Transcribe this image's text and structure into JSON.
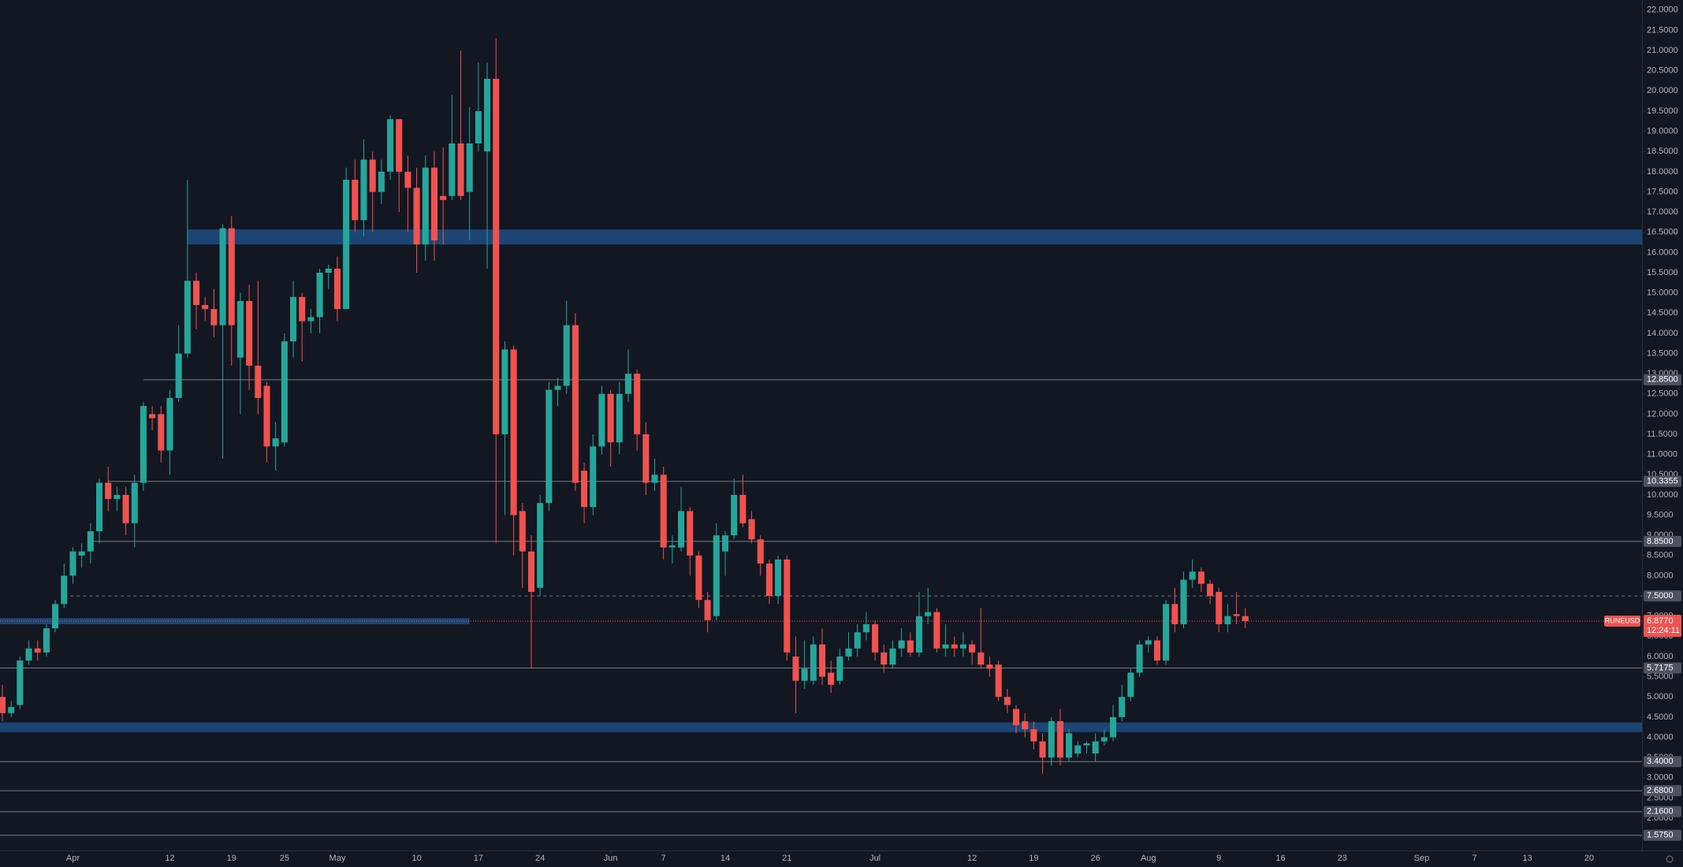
{
  "chart_data": {
    "type": "candlestick",
    "symbol": "RUNEUSD",
    "x": [
      "Mar 24",
      "Mar 25",
      "Mar 26",
      "Mar 27",
      "Mar 28",
      "Mar 29",
      "Mar 30",
      "Mar 31",
      "Apr 1",
      "Apr 2",
      "Apr 3",
      "Apr 4",
      "Apr 5",
      "Apr 6",
      "Apr 7",
      "Apr 8",
      "Apr 9",
      "Apr 10",
      "Apr 11",
      "Apr 12",
      "Apr 13",
      "Apr 14",
      "Apr 15",
      "Apr 16",
      "Apr 17",
      "Apr 18",
      "Apr 19",
      "Apr 20",
      "Apr 21",
      "Apr 22",
      "Apr 23",
      "Apr 24",
      "Apr 25",
      "Apr 26",
      "Apr 27",
      "Apr 28",
      "Apr 29",
      "Apr 30",
      "May 1",
      "May 2",
      "May 3",
      "May 4",
      "May 5",
      "May 6",
      "May 7",
      "May 8",
      "May 9",
      "May 10",
      "May 11",
      "May 12",
      "May 13",
      "May 14",
      "May 15",
      "May 16",
      "May 17",
      "May 18",
      "May 19",
      "May 20",
      "May 21",
      "May 22",
      "May 23",
      "May 24",
      "May 25",
      "May 26",
      "May 27",
      "May 28",
      "May 29",
      "May 30",
      "May 31",
      "Jun 1",
      "Jun 2",
      "Jun 3",
      "Jun 4",
      "Jun 5",
      "Jun 6",
      "Jun 7",
      "Jun 8",
      "Jun 9",
      "Jun 10",
      "Jun 11",
      "Jun 12",
      "Jun 13",
      "Jun 14",
      "Jun 15",
      "Jun 16",
      "Jun 17",
      "Jun 18",
      "Jun 19",
      "Jun 20",
      "Jun 21",
      "Jun 22",
      "Jun 23",
      "Jun 24",
      "Jun 25",
      "Jun 26",
      "Jun 27",
      "Jun 28",
      "Jun 29",
      "Jun 30",
      "Jul 1",
      "Jul 2",
      "Jul 3",
      "Jul 4",
      "Jul 5",
      "Jul 6",
      "Jul 7",
      "Jul 8",
      "Jul 9",
      "Jul 10",
      "Jul 11",
      "Jul 12",
      "Jul 13",
      "Jul 14",
      "Jul 15",
      "Jul 16",
      "Jul 17",
      "Jul 18",
      "Jul 19",
      "Jul 20",
      "Jul 21",
      "Jul 22",
      "Jul 23",
      "Jul 24",
      "Jul 25",
      "Jul 26",
      "Jul 27",
      "Jul 28",
      "Jul 29",
      "Jul 30",
      "Jul 31",
      "Aug 1",
      "Aug 2",
      "Aug 3",
      "Aug 4",
      "Aug 5",
      "Aug 6",
      "Aug 7",
      "Aug 8",
      "Aug 9",
      "Aug 10",
      "Aug 11",
      "Aug 12"
    ],
    "open": [
      5.0,
      4.6,
      4.8,
      5.9,
      6.2,
      6.1,
      6.7,
      7.3,
      8.0,
      8.5,
      8.6,
      9.1,
      10.3,
      9.9,
      10.0,
      9.3,
      10.3,
      12.0,
      12.0,
      11.1,
      12.4,
      13.5,
      15.3,
      14.7,
      14.6,
      14.2,
      16.6,
      13.4,
      14.8,
      13.2,
      12.7,
      11.2,
      11.3,
      13.8,
      14.9,
      14.3,
      14.4,
      15.5,
      15.6,
      14.6,
      17.8,
      16.8,
      18.3,
      17.5,
      18.0,
      19.3,
      18.0,
      17.6,
      16.2,
      18.1,
      17.4,
      17.4,
      18.7,
      17.5,
      18.7,
      18.5,
      20.3,
      11.5,
      13.6,
      9.6,
      8.6,
      7.7,
      9.8,
      12.6,
      12.7,
      14.2,
      10.6,
      9.7,
      11.2,
      12.5,
      11.3,
      12.5,
      13.0,
      11.5,
      10.3,
      10.5,
      8.7,
      8.7,
      9.6,
      8.5,
      7.4,
      7.0,
      8.6,
      9.0,
      10.0,
      9.4,
      8.9,
      8.3,
      7.5,
      8.4,
      6.0,
      5.4,
      5.4,
      6.3,
      5.6,
      5.4,
      6.0,
      6.2,
      6.6,
      6.8,
      6.1,
      5.8,
      6.2,
      6.4,
      6.1,
      7.0,
      7.1,
      6.2,
      6.3,
      6.2,
      6.3,
      6.1,
      5.8,
      5.8,
      5.0,
      4.7,
      4.4,
      4.2,
      3.9,
      3.5,
      4.4,
      3.5,
      3.6,
      3.8,
      3.6,
      3.9,
      4.0,
      4.5,
      5.0,
      5.6,
      6.3,
      6.4,
      5.9,
      7.3,
      6.8,
      7.9,
      8.1,
      7.8,
      7.6,
      6.8,
      7.05,
      7.0
    ],
    "high": [
      5.3,
      4.9,
      6.0,
      6.4,
      6.4,
      6.8,
      7.4,
      8.3,
      8.7,
      8.8,
      9.3,
      10.4,
      10.7,
      10.2,
      10.2,
      10.5,
      12.3,
      12.2,
      12.2,
      12.6,
      14.2,
      17.8,
      15.5,
      14.9,
      15.1,
      16.7,
      16.9,
      15.0,
      15.2,
      15.3,
      12.8,
      11.8,
      14.0,
      15.3,
      15.0,
      14.6,
      15.6,
      15.7,
      15.9,
      18.1,
      18.3,
      18.8,
      18.5,
      18.3,
      19.4,
      19.3,
      18.4,
      18.1,
      18.4,
      18.5,
      18.6,
      19.9,
      21.0,
      19.6,
      20.7,
      20.7,
      21.3,
      13.8,
      13.7,
      9.8,
      9.0,
      10.0,
      12.8,
      12.9,
      14.8,
      14.5,
      10.8,
      11.5,
      12.7,
      12.6,
      12.8,
      13.6,
      13.1,
      11.8,
      10.9,
      10.7,
      9.0,
      10.2,
      9.7,
      8.6,
      7.6,
      9.3,
      9.1,
      10.4,
      10.5,
      9.6,
      9.0,
      8.4,
      8.5,
      8.5,
      6.5,
      6.4,
      6.5,
      6.7,
      5.9,
      6.2,
      6.6,
      6.8,
      7.1,
      6.9,
      6.3,
      6.4,
      6.7,
      6.6,
      7.6,
      7.7,
      7.2,
      6.8,
      6.5,
      6.6,
      6.4,
      7.2,
      6.0,
      5.9,
      5.2,
      4.8,
      4.6,
      4.4,
      4.1,
      4.5,
      4.7,
      4.2,
      3.9,
      3.9,
      4.1,
      4.2,
      4.8,
      5.3,
      5.7,
      6.4,
      6.5,
      6.5,
      7.4,
      7.7,
      8.1,
      8.4,
      8.2,
      7.9,
      7.7,
      7.3,
      7.6,
      7.2
    ],
    "low": [
      4.4,
      4.5,
      4.7,
      5.8,
      5.9,
      6.0,
      6.6,
      7.2,
      7.8,
      8.2,
      8.3,
      8.8,
      9.6,
      9.6,
      9.0,
      8.7,
      10.1,
      11.6,
      10.8,
      10.5,
      12.3,
      13.4,
      14.1,
      14.3,
      13.9,
      10.9,
      13.2,
      12.0,
      12.6,
      12.0,
      10.8,
      10.6,
      11.2,
      13.4,
      13.3,
      14.0,
      14.0,
      15.1,
      14.3,
      14.6,
      16.5,
      16.4,
      16.5,
      17.2,
      17.8,
      17.0,
      16.5,
      15.5,
      15.8,
      15.8,
      16.2,
      17.3,
      17.3,
      16.3,
      18.5,
      15.6,
      8.8,
      9.5,
      8.5,
      7.7,
      5.7,
      7.5,
      9.6,
      12.2,
      12.5,
      10.1,
      9.3,
      9.5,
      11.0,
      10.7,
      11.0,
      12.3,
      11.1,
      10.0,
      10.1,
      8.4,
      8.3,
      8.6,
      8.0,
      7.2,
      6.6,
      6.9,
      8.0,
      8.9,
      9.2,
      8.8,
      8.0,
      7.3,
      7.3,
      5.9,
      4.6,
      5.2,
      5.3,
      5.3,
      5.1,
      5.3,
      5.9,
      6.0,
      6.4,
      5.9,
      5.6,
      5.7,
      6.0,
      6.0,
      6.0,
      6.8,
      6.1,
      6.0,
      6.0,
      6.0,
      5.8,
      5.7,
      5.5,
      4.9,
      4.6,
      4.1,
      4.0,
      3.7,
      3.1,
      3.3,
      3.3,
      3.4,
      3.5,
      3.6,
      3.4,
      3.8,
      3.9,
      4.4,
      4.9,
      5.5,
      6.1,
      5.8,
      5.8,
      6.6,
      6.7,
      7.7,
      7.6,
      7.3,
      6.6,
      6.6,
      6.8,
      6.7
    ],
    "close": [
      4.6,
      4.75,
      5.9,
      6.2,
      6.1,
      6.7,
      7.3,
      8.0,
      8.6,
      8.6,
      9.1,
      10.3,
      9.9,
      10.0,
      9.3,
      10.3,
      12.2,
      11.9,
      11.1,
      12.4,
      13.5,
      15.3,
      14.7,
      14.6,
      14.2,
      16.6,
      14.2,
      14.8,
      13.2,
      12.4,
      11.2,
      11.4,
      13.8,
      14.9,
      14.3,
      14.4,
      15.5,
      15.6,
      14.6,
      17.8,
      16.8,
      18.3,
      17.5,
      18.0,
      19.3,
      18.0,
      17.6,
      16.2,
      18.1,
      16.3,
      17.3,
      18.7,
      17.4,
      18.7,
      19.5,
      20.3,
      11.5,
      13.6,
      9.5,
      8.6,
      7.6,
      9.8,
      12.6,
      12.7,
      14.2,
      10.3,
      9.7,
      11.2,
      12.5,
      11.3,
      12.5,
      13.0,
      11.5,
      10.3,
      10.5,
      8.7,
      8.75,
      9.6,
      8.5,
      7.4,
      6.9,
      9.0,
      9.0,
      10.0,
      9.3,
      8.9,
      8.3,
      7.5,
      8.4,
      6.1,
      5.4,
      5.7,
      6.3,
      5.5,
      5.3,
      6.0,
      6.2,
      6.6,
      6.8,
      6.1,
      5.8,
      6.2,
      6.4,
      6.1,
      7.0,
      7.1,
      6.2,
      6.3,
      6.2,
      6.3,
      6.1,
      5.8,
      5.7,
      5.0,
      4.8,
      4.3,
      4.2,
      3.9,
      3.5,
      4.4,
      3.5,
      4.1,
      3.8,
      3.85,
      3.9,
      4.0,
      4.5,
      5.0,
      5.6,
      6.3,
      6.4,
      5.9,
      7.3,
      6.8,
      7.9,
      8.1,
      7.8,
      7.5,
      6.8,
      7.0,
      7.0,
      6.877
    ],
    "up_color": "#26a69a",
    "down_color": "#ef5350",
    "xlim": [
      "Mar 24",
      "Sep 26"
    ],
    "xticks": [
      {
        "value": "Apr 1",
        "label": "Apr"
      },
      {
        "value": "Apr 12",
        "label": "12"
      },
      {
        "value": "Apr 19",
        "label": "19"
      },
      {
        "value": "Apr 25",
        "label": "25"
      },
      {
        "value": "May 1",
        "label": "May"
      },
      {
        "value": "May 10",
        "label": "10"
      },
      {
        "value": "May 17",
        "label": "17"
      },
      {
        "value": "May 24",
        "label": "24"
      },
      {
        "value": "Jun 1",
        "label": "Jun"
      },
      {
        "value": "Jun 7",
        "label": "7"
      },
      {
        "value": "Jun 14",
        "label": "14"
      },
      {
        "value": "Jun 21",
        "label": "21"
      },
      {
        "value": "Jul 1",
        "label": "Jul"
      },
      {
        "value": "Jul 12",
        "label": "12"
      },
      {
        "value": "Jul 19",
        "label": "19"
      },
      {
        "value": "Jul 26",
        "label": "26"
      },
      {
        "value": "Aug 1",
        "label": "Aug"
      },
      {
        "value": "Aug 9",
        "label": "9"
      },
      {
        "value": "Aug 16",
        "label": "16"
      },
      {
        "value": "Aug 23",
        "label": "23"
      },
      {
        "value": "Sep 1",
        "label": "Sep"
      },
      {
        "value": "Sep 7",
        "label": "7"
      },
      {
        "value": "Sep 13",
        "label": "13"
      },
      {
        "value": "Sep 20",
        "label": "20"
      }
    ],
    "ylim": [
      1.2,
      22.25
    ],
    "yticks": [
      {
        "value": 22,
        "label": "22.0000"
      },
      {
        "value": 21.5,
        "label": "21.5000"
      },
      {
        "value": 21,
        "label": "21.0000"
      },
      {
        "value": 20.5,
        "label": "20.5000"
      },
      {
        "value": 20,
        "label": "20.0000"
      },
      {
        "value": 19.5,
        "label": "19.5000"
      },
      {
        "value": 19,
        "label": "19.0000"
      },
      {
        "value": 18.5,
        "label": "18.5000"
      },
      {
        "value": 18,
        "label": "18.0000"
      },
      {
        "value": 17.5,
        "label": "17.5000"
      },
      {
        "value": 17,
        "label": "17.0000"
      },
      {
        "value": 16.5,
        "label": "16.5000"
      },
      {
        "value": 16,
        "label": "16.0000"
      },
      {
        "value": 15.5,
        "label": "15.5000"
      },
      {
        "value": 15,
        "label": "15.0000"
      },
      {
        "value": 14.5,
        "label": "14.5000"
      },
      {
        "value": 14,
        "label": "14.0000"
      },
      {
        "value": 13.5,
        "label": "13.5000"
      },
      {
        "value": 13,
        "label": "13.0000"
      },
      {
        "value": 12.5,
        "label": "12.5000"
      },
      {
        "value": 12,
        "label": "12.0000"
      },
      {
        "value": 11.5,
        "label": "11.5000"
      },
      {
        "value": 11,
        "label": "11.0000"
      },
      {
        "value": 10.5,
        "label": "10.5000"
      },
      {
        "value": 10,
        "label": "10.0000"
      },
      {
        "value": 9.5,
        "label": "9.5000"
      },
      {
        "value": 9,
        "label": "9.0000"
      },
      {
        "value": 8.5,
        "label": "8.5000"
      },
      {
        "value": 8,
        "label": "8.0000"
      },
      {
        "value": 7.5,
        "label": "7.5000"
      },
      {
        "value": 7,
        "label": "7.0000"
      },
      {
        "value": 6.5,
        "label": "6.5000"
      },
      {
        "value": 6,
        "label": "6.0000"
      },
      {
        "value": 5.5,
        "label": "5.5000"
      },
      {
        "value": 5,
        "label": "5.0000"
      },
      {
        "value": 4.5,
        "label": "4.5000"
      },
      {
        "value": 4,
        "label": "4.0000"
      },
      {
        "value": 3.5,
        "label": "3.5000"
      },
      {
        "value": 3,
        "label": "3.0000"
      },
      {
        "value": 2.5,
        "label": "2.5000"
      },
      {
        "value": 2,
        "label": "2.0000"
      },
      {
        "value": 1.5,
        "label": "1.5000"
      }
    ],
    "zones": [
      {
        "low": 16.2,
        "high": 16.57,
        "from": "Apr 14",
        "color": "#1f4e82"
      },
      {
        "low": 6.8,
        "high": 6.95,
        "to": "May 16",
        "color": "#1f4e82"
      },
      {
        "low": 4.13,
        "high": 4.37,
        "color": "#1f4e82"
      }
    ],
    "levels": [
      {
        "value": 12.85,
        "label": "12.8500",
        "from": "Apr 9"
      },
      {
        "value": 10.3355,
        "label": "10.3355",
        "from": "Apr 5"
      },
      {
        "value": 8.85,
        "label": "8.8500",
        "from": "Apr 3"
      },
      {
        "value": 7.5,
        "label": "7.5000",
        "from": "Mar 31",
        "dashed": true
      },
      {
        "value": 5.7175,
        "label": "5.7175"
      },
      {
        "value": 3.4,
        "label": "3.4000"
      },
      {
        "value": 2.68,
        "label": "2.6800"
      },
      {
        "value": 2.16,
        "label": "2.1600"
      },
      {
        "value": 1.575,
        "label": "1.5750"
      }
    ],
    "last": {
      "value": 6.877,
      "label": "6.8770",
      "countdown": "12:24:11",
      "color": "#ef5350"
    }
  }
}
